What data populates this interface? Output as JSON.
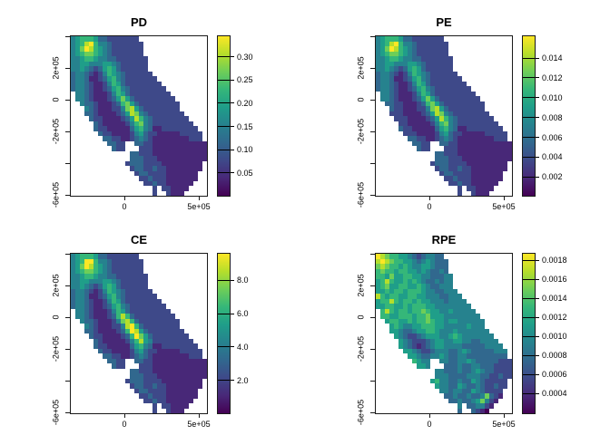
{
  "figure": {
    "background": "#ffffff"
  },
  "colormap": {
    "name": "viridis",
    "colors": [
      "#440154",
      "#482878",
      "#3e4989",
      "#31688e",
      "#26828e",
      "#1f9e89",
      "#35b779",
      "#6ece58",
      "#b5de2b",
      "#fde725"
    ]
  },
  "axes": {
    "x_ticks": [
      {
        "value": 0,
        "label": "0"
      },
      {
        "value": 500000,
        "label": "5e+05"
      }
    ],
    "y_ticks": [
      {
        "value": 400000,
        "label": ""
      },
      {
        "value": 200000,
        "label": "2e+05"
      },
      {
        "value": 0,
        "label": "0"
      },
      {
        "value": -200000,
        "label": "-2e+05"
      },
      {
        "value": -400000,
        "label": ""
      },
      {
        "value": -600000,
        "label": "-6e+05"
      }
    ]
  },
  "value_encoding": "grid digits 0-9 map linearly onto colorbar range; '.' = no data (outside state)",
  "chart_data": [
    {
      "type": "heatmap",
      "title": "PD",
      "xlabel": "",
      "ylabel": "",
      "colorbar": {
        "range": [
          0.001,
          0.344
        ],
        "ticks": [
          {
            "value": 0.05,
            "label": "0.05"
          },
          {
            "value": 0.1,
            "label": "0.10"
          },
          {
            "value": 0.15,
            "label": "0.15"
          },
          {
            "value": 0.2,
            "label": "0.20"
          },
          {
            "value": 0.25,
            "label": "0.25"
          },
          {
            "value": 0.3,
            "label": "0.30"
          }
        ]
      },
      "grid": [
        "456665332222222...............",
        "4568964432222222..............",
        "4579865432222222..............",
        "4567765432222222..............",
        "44566544332222222.............",
        "44554445543222222.............",
        "44543235653222222.............",
        "344321246543222222............",
        "3443112356432222222...........",
        "34432112465322222222..........",
        "344321123564322222222.........",
        ".443211124653222222222........",
        ".4432111235753222222222.......",
        "..4332111236753222222222......",
        "...432111224785322222222......",
        "...3321111235874322222222.....",
        "....3221111235864322222222....",
        ".....3211111246743222222222...",
        ".....32211111356431122222222..",
        "......32211112453221111122222.",
        ".......3322112343211111111222.",
        "........3322..3322111111111111",
        ".........322...222111111111111",
        ".............33222111111111111",
        ".............33322211111111111",
        "............23332222111111111.",
        ".............2332232211111111.",
        "..............23322221111111..",
        "...............2232221111111..",
        "................22322111111...",
        "..................2.221111....",
        "..................2..2111....."
      ]
    },
    {
      "type": "heatmap",
      "title": "PE",
      "xlabel": "",
      "ylabel": "",
      "colorbar": {
        "range": [
          0.0001,
          0.0162
        ],
        "ticks": [
          {
            "value": 0.002,
            "label": "0.002"
          },
          {
            "value": 0.004,
            "label": "0.004"
          },
          {
            "value": 0.006,
            "label": "0.006"
          },
          {
            "value": 0.008,
            "label": "0.008"
          },
          {
            "value": 0.01,
            "label": "0.010"
          },
          {
            "value": 0.012,
            "label": "0.012"
          },
          {
            "value": 0.014,
            "label": "0.014"
          }
        ]
      },
      "grid": [
        "456665332222222...............",
        "4568964432222222..............",
        "4579865432222222..............",
        "4567765432222222..............",
        "44566544332222222.............",
        "44554445543222222.............",
        "44543235653222222.............",
        "344321246543222222............",
        "3443112356432222222...........",
        "34432112465322222222..........",
        "344321123564322222222.........",
        ".443211124653222222222........",
        ".4432111235753222222222.......",
        "..3322111236753222222222......",
        "...322111224785322222222......",
        "...2221111235874322222222.....",
        "....2221111235864322222222....",
        ".....2211111246743222222222...",
        ".....32211111356431122222222..",
        "......22211112453221111122222.",
        ".......3322112343211111111222.",
        "........3322..3322111111111111",
        ".........322...222111111111111",
        ".............33222111111111111",
        ".............33322211111111111",
        "............23332222111111111.",
        ".............2332232211111111.",
        "..............23322221111111..",
        "...............2232221111111..",
        "................22322111111...",
        "..................2.221111....",
        "..................2..2111....."
      ]
    },
    {
      "type": "heatmap",
      "title": "CE",
      "xlabel": "",
      "ylabel": "",
      "colorbar": {
        "range": [
          0.03,
          9.6
        ],
        "ticks": [
          {
            "value": 2.0,
            "label": "2.0"
          },
          {
            "value": 4.0,
            "label": "4.0"
          },
          {
            "value": 6.0,
            "label": "6.0"
          },
          {
            "value": 8.0,
            "label": "8.0"
          }
        ]
      },
      "grid": [
        "456665332222222...............",
        "4569964432222222..............",
        "4579865432222222..............",
        "4567765432222222..............",
        "44566544332222222.............",
        "44554445543222222.............",
        "44543235653222222.............",
        "344321246543222222............",
        "3443112356432222222...........",
        "34432112465322222222..........",
        "344321123564322222222.........",
        ".443211124653222222222........",
        ".4432111236863222222222.......",
        "..4332111247863222222222......",
        "...432111224896322222222......",
        "...3321111236985322222222.....",
        "....3221111236975322222222....",
        ".....3211111246854222222222...",
        ".....32211111356431122222222..",
        "......32211112453221111122222.",
        ".......3322112343211111111222.",
        "........3322..3322111111111111",
        ".........322...222111111111111",
        ".............33222111111111111",
        ".............33322211111111111",
        "............23332222111111111.",
        ".............2332232211111111.",
        "..............23322221111111..",
        "...............2232221111111..",
        "................22322111111...",
        "..................2.221111....",
        "..................2..2111....."
      ]
    },
    {
      "type": "heatmap",
      "title": "RPE",
      "xlabel": "",
      "ylabel": "",
      "colorbar": {
        "range": [
          0.00019,
          0.00187
        ],
        "ticks": [
          {
            "value": 0.0004,
            "label": "0.0004"
          },
          {
            "value": 0.0006,
            "label": "0.0006"
          },
          {
            "value": 0.0008,
            "label": "0.0008"
          },
          {
            "value": 0.001,
            "label": "0.0010"
          },
          {
            "value": 0.0012,
            "label": "0.0012"
          },
          {
            "value": 0.0014,
            "label": "0.0014"
          },
          {
            "value": 0.0016,
            "label": "0.0016"
          },
          {
            "value": 0.0018,
            "label": "0.0018"
          }
        ]
      },
      "grid": [
        "987665543234433...............",
        "8987665543454333..............",
        "7876656544554333..............",
        "6766566554543343..............",
        "66575566554433344.............",
        "56865565654334344.............",
        "56755665565433444.............",
        "556566566654433444............",
        "8656655665544433444...........",
        "56686566565544434444..........",
        "556655656665544444444.........",
        ".686566566765544544444........",
        ".6655666566755544444444.......",
        "..5665565667655455444444......",
        "...565445566655444445444......",
        "...5543345566544454444444.....",
        "....5432234555445654444444....",
        ".....5432223455445544334444...",
        ".....54321234554444333334444..",
        "......55432234443345433333444.",
        ".......5543344543344333333333.",
        "........6544..4433445433333222",
        ".........554...333433443332222",
        ".............44333433454332222",
        ".............44433334443322322",
        "............56443343354322222.",
        ".............5443354334322322.",
        "..............44344335432222..",
        "...............3343343347321..",
        "................33433457421...",
        "..................4.334421....",
        "..................3..3210....."
      ]
    }
  ]
}
